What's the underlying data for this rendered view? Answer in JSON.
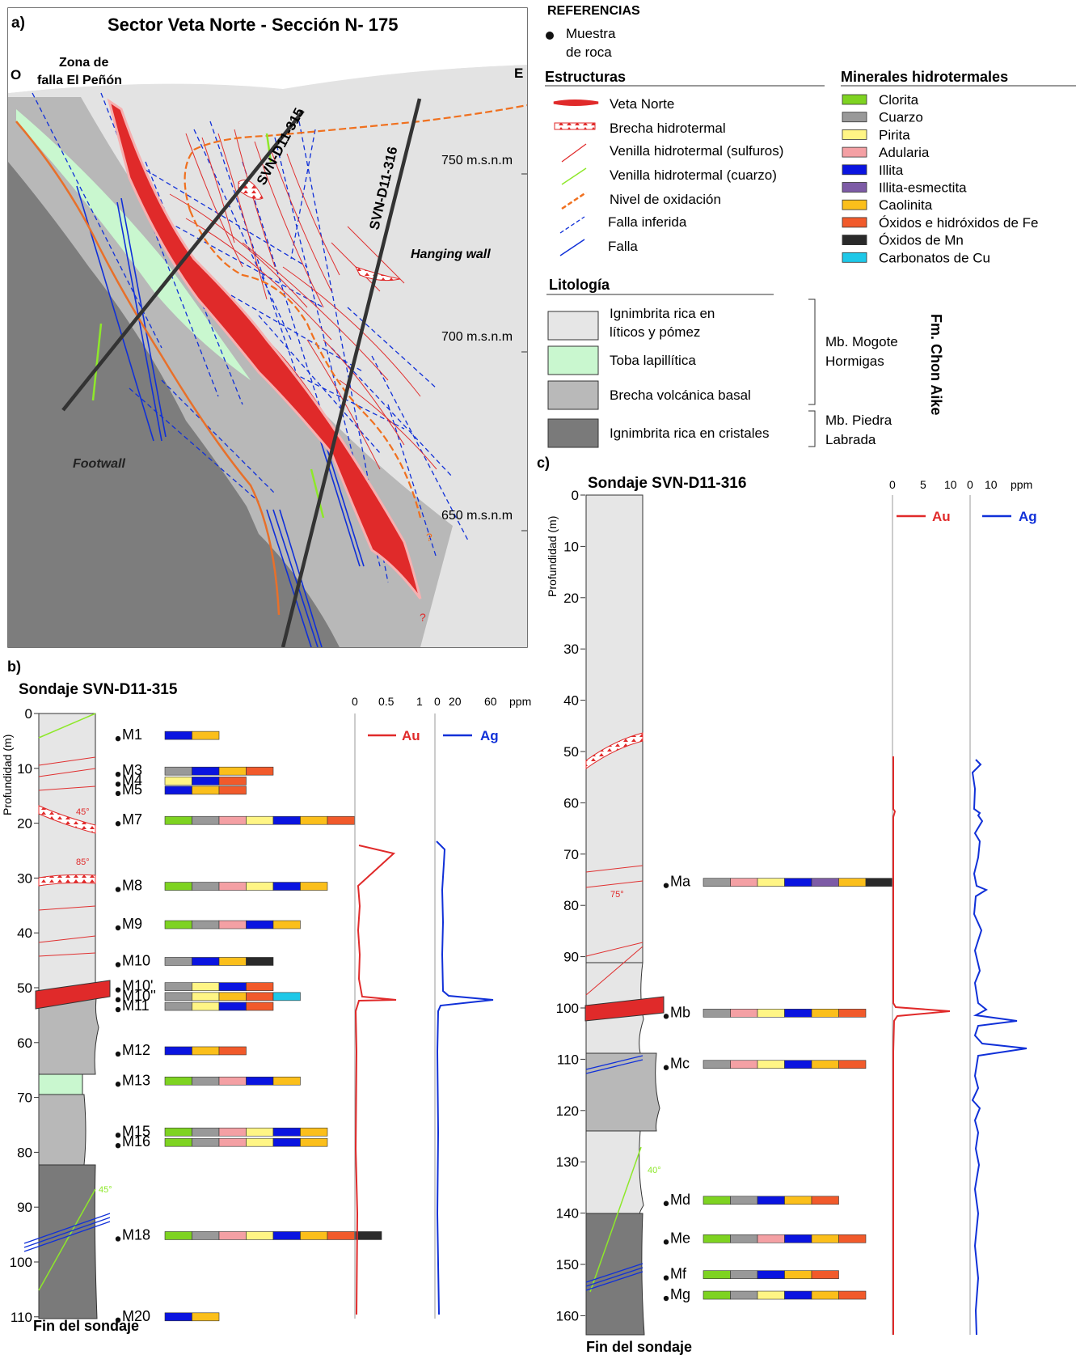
{
  "panel_a": {
    "label": "a)",
    "title": "Sector Veta Norte - Sección N- 175",
    "west": "O",
    "east": "E",
    "fault_zone": [
      "Zona de",
      "falla El Peñón"
    ],
    "hanging_wall": "Hanging wall",
    "footwall": "Footwall",
    "drillhole_315": "SVN-D11-315",
    "drillhole_316": "SVN-D11-316",
    "elevations": [
      "750 m.s.n.m",
      "700 m.s.n.m",
      "650 m.s.n.m"
    ],
    "question": "?"
  },
  "legend": {
    "heading": "REFERENCIAS",
    "sample": [
      "Muestra",
      "de roca"
    ],
    "structures_heading": "Estructuras",
    "structures": [
      "Veta Norte",
      "Brecha hidrotermal",
      "Venilla hidrotermal (sulfuros)",
      "Venilla hidrotermal (cuarzo)",
      "Nivel de oxidación",
      "Falla inferida",
      "Falla"
    ],
    "minerals_heading": "Minerales hidrotermales",
    "minerals": [
      {
        "name": "Clorita",
        "color": "#7ed321"
      },
      {
        "name": "Cuarzo",
        "color": "#999999"
      },
      {
        "name": "Pirita",
        "color": "#fff585"
      },
      {
        "name": "Adularia",
        "color": "#f4a0a4"
      },
      {
        "name": "Illita",
        "color": "#0a14e0"
      },
      {
        "name": "Illita-esmectita",
        "color": "#7d5ba6"
      },
      {
        "name": "Caolinita",
        "color": "#fbbf1b"
      },
      {
        "name": "Óxidos e hidróxidos de Fe",
        "color": "#f15a2b"
      },
      {
        "name": "Óxidos de Mn",
        "color": "#2a2a2a"
      },
      {
        "name": "Carbonatos de Cu",
        "color": "#1ec8e8"
      }
    ],
    "lithology_heading": "Litología",
    "lithologies": [
      {
        "name": [
          "Ignimbrita rica en",
          "líticos y pómez"
        ],
        "color": "#e6e6e6"
      },
      {
        "name": [
          "Toba lapillítica"
        ],
        "color": "#c9f7cf"
      },
      {
        "name": [
          "Brecha volcánica basal"
        ],
        "color": "#b9b9b9"
      },
      {
        "name": [
          "Ignimbrita rica en cristales"
        ],
        "color": "#7a7a7a"
      }
    ],
    "member_1": [
      "Mb. Mogote",
      "Hormigas"
    ],
    "member_2": [
      "Mb. Piedra",
      "Labrada"
    ],
    "formation": "Fm. Chon Aike"
  },
  "panel_b": {
    "label": "b)",
    "title": "Sondaje SVN-D11-315",
    "depth_label": "Profundidad (m)",
    "depth_ticks": [
      "0",
      "10",
      "20",
      "30",
      "40",
      "50",
      "60",
      "70",
      "80",
      "90",
      "100",
      "110"
    ],
    "end_label": "Fin del sondaje",
    "au_ticks": [
      "0",
      "0.5",
      "1"
    ],
    "ag_ticks": [
      "0",
      "20",
      "60"
    ],
    "ppm": "ppm",
    "au": "Au",
    "ag": "Ag",
    "angles": [
      "45°",
      "85°",
      "45°"
    ],
    "samples": [
      {
        "id": "M1",
        "depth": 4,
        "minerals": [
          "Illita",
          "Caolinita"
        ]
      },
      {
        "id": "M3",
        "depth": 10.5,
        "minerals": [
          "Cuarzo",
          "Illita",
          "Caolinita",
          "Óxidos e hidróxidos de Fe"
        ]
      },
      {
        "id": "M4",
        "depth": 12.3,
        "minerals": [
          "Pirita",
          "Illita",
          "Óxidos e hidróxidos de Fe"
        ]
      },
      {
        "id": "M5",
        "depth": 14,
        "minerals": [
          "Illita",
          "Caolinita",
          "Óxidos e hidróxidos de Fe"
        ]
      },
      {
        "id": "M7",
        "depth": 19.5,
        "minerals": [
          "Clorita",
          "Cuarzo",
          "Adularia",
          "Pirita",
          "Illita",
          "Caolinita",
          "Óxidos e hidróxidos de Fe"
        ]
      },
      {
        "id": "M8",
        "depth": 31.5,
        "minerals": [
          "Clorita",
          "Cuarzo",
          "Adularia",
          "Pirita",
          "Illita",
          "Caolinita"
        ]
      },
      {
        "id": "M9",
        "depth": 38.5,
        "minerals": [
          "Clorita",
          "Cuarzo",
          "Adularia",
          "Illita",
          "Caolinita"
        ]
      },
      {
        "id": "M10",
        "depth": 45.2,
        "minerals": [
          "Cuarzo",
          "Illita",
          "Caolinita",
          "Óxidos de Mn"
        ]
      },
      {
        "id": "M10'",
        "depth": 49.8,
        "minerals": [
          "Cuarzo",
          "Pirita",
          "Illita",
          "Óxidos e hidróxidos de Fe"
        ]
      },
      {
        "id": "M10''",
        "depth": 51.6,
        "minerals": [
          "Cuarzo",
          "Pirita",
          "Caolinita",
          "Óxidos e hidróxidos de Fe",
          "Carbonatos de Cu"
        ]
      },
      {
        "id": "M11",
        "depth": 53.4,
        "minerals": [
          "Cuarzo",
          "Pirita",
          "Illita",
          "Óxidos e hidróxidos de Fe"
        ]
      },
      {
        "id": "M12",
        "depth": 61.5,
        "minerals": [
          "Illita",
          "Caolinita",
          "Óxidos e hidróxidos de Fe"
        ]
      },
      {
        "id": "M13",
        "depth": 67,
        "minerals": [
          "Clorita",
          "Cuarzo",
          "Adularia",
          "Illita",
          "Caolinita"
        ]
      },
      {
        "id": "M15",
        "depth": 76.3,
        "minerals": [
          "Clorita",
          "Cuarzo",
          "Adularia",
          "Pirita",
          "Illita",
          "Caolinita"
        ]
      },
      {
        "id": "M16",
        "depth": 78.2,
        "minerals": [
          "Clorita",
          "Cuarzo",
          "Adularia",
          "Pirita",
          "Illita",
          "Caolinita"
        ]
      },
      {
        "id": "M18",
        "depth": 95.2,
        "minerals": [
          "Clorita",
          "Cuarzo",
          "Adularia",
          "Pirita",
          "Illita",
          "Caolinita",
          "Óxidos e hidróxidos de Fe",
          "Óxidos de Mn"
        ]
      },
      {
        "id": "M20",
        "depth": 110,
        "minerals": [
          "Illita",
          "Caolinita"
        ]
      }
    ]
  },
  "panel_c": {
    "label": "c)",
    "title": "Sondaje SVN-D11-316",
    "depth_label": "Profundidad (m)",
    "depth_ticks": [
      "0",
      "10",
      "20",
      "30",
      "40",
      "50",
      "60",
      "70",
      "80",
      "90",
      "100",
      "110",
      "120",
      "130",
      "140",
      "150",
      "160"
    ],
    "end_label": "Fin del sondaje",
    "au_ticks": [
      "0",
      "5",
      "10"
    ],
    "ag_ticks": [
      "0",
      "10"
    ],
    "ppm": "ppm",
    "au": "Au",
    "ag": "Ag",
    "angles": [
      "75°",
      "40°"
    ],
    "samples": [
      {
        "id": "Ma",
        "depth": 75.5,
        "minerals": [
          "Cuarzo",
          "Adularia",
          "Pirita",
          "Illita",
          "Illita-esmectita",
          "Caolinita",
          "Óxidos de Mn"
        ]
      },
      {
        "id": "Mb",
        "depth": 101,
        "minerals": [
          "Cuarzo",
          "Adularia",
          "Pirita",
          "Illita",
          "Caolinita",
          "Óxidos e hidróxidos de Fe"
        ]
      },
      {
        "id": "Mc",
        "depth": 111,
        "minerals": [
          "Cuarzo",
          "Adularia",
          "Pirita",
          "Illita",
          "Caolinita",
          "Óxidos e hidróxidos de Fe"
        ]
      },
      {
        "id": "Md",
        "depth": 137.5,
        "minerals": [
          "Clorita",
          "Cuarzo",
          "Illita",
          "Caolinita",
          "Óxidos e hidróxidos de Fe"
        ]
      },
      {
        "id": "Me",
        "depth": 145,
        "minerals": [
          "Clorita",
          "Cuarzo",
          "Adularia",
          "Illita",
          "Caolinita",
          "Óxidos e hidróxidos de Fe"
        ]
      },
      {
        "id": "Mf",
        "depth": 152,
        "minerals": [
          "Clorita",
          "Cuarzo",
          "Illita",
          "Caolinita",
          "Óxidos e hidróxidos de Fe"
        ]
      },
      {
        "id": "Mg",
        "depth": 156,
        "minerals": [
          "Clorita",
          "Cuarzo",
          "Pirita",
          "Illita",
          "Caolinita",
          "Óxidos e hidróxidos de Fe"
        ]
      }
    ]
  }
}
